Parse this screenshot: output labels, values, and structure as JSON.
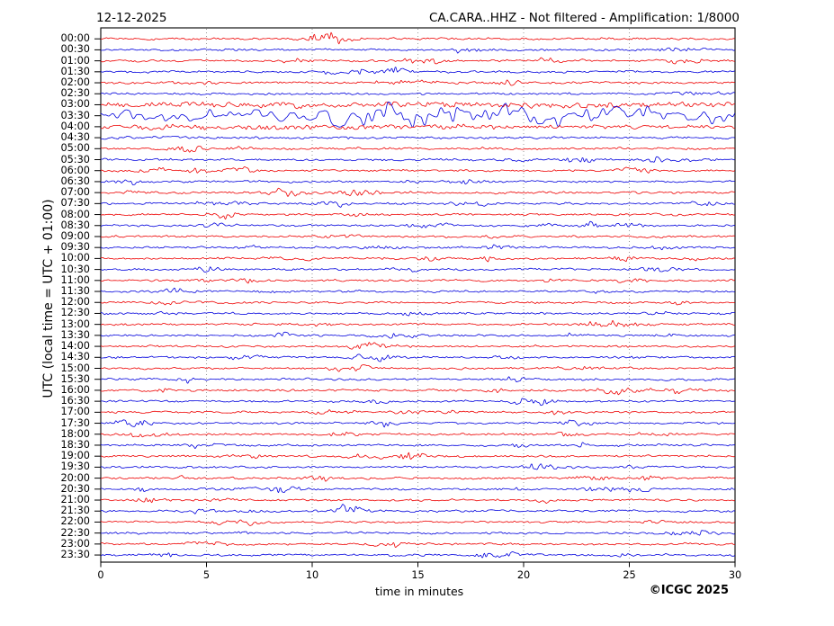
{
  "header": {
    "date": "12-12-2025",
    "title": "CA.CARA..HHZ - Not filtered - Amplification: 1/8000"
  },
  "footer": {
    "copyright": "©ICGC 2025"
  },
  "axes": {
    "xlabel": "time in minutes",
    "ylabel": "UTC (local time = UTC + 01:00)"
  },
  "chart_data": {
    "type": "line",
    "subtype": "helicorder-dayplot",
    "station": "CA.CARA..HHZ",
    "filter": "Not filtered",
    "amplification": "1/8000",
    "date": "12-12-2025",
    "xlabel": "time in minutes",
    "ylabel": "UTC (local time = UTC + 01:00)",
    "xlim": [
      0,
      30
    ],
    "x_ticks": [
      0,
      5,
      10,
      15,
      20,
      25,
      30
    ],
    "minutes_per_row": 30,
    "grid": "vertical dotted gridlines at 5-minute intervals",
    "trace_colors": {
      "even_rows": "#ee0000",
      "odd_rows": "#0000dd"
    },
    "grid_color": "#808080",
    "row_labels": [
      "00:00",
      "00:30",
      "01:00",
      "01:30",
      "02:00",
      "02:30",
      "03:00",
      "03:30",
      "04:00",
      "04:30",
      "05:00",
      "05:30",
      "06:00",
      "06:30",
      "07:00",
      "07:30",
      "08:00",
      "08:30",
      "09:00",
      "09:30",
      "10:00",
      "10:30",
      "11:00",
      "11:30",
      "12:00",
      "12:30",
      "13:00",
      "13:30",
      "14:00",
      "14:30",
      "15:00",
      "15:30",
      "16:00",
      "16:30",
      "17:00",
      "17:30",
      "18:00",
      "18:30",
      "19:00",
      "19:30",
      "20:00",
      "20:30",
      "21:00",
      "21:30",
      "22:00",
      "22:30",
      "23:00",
      "23:30"
    ],
    "base_amplitude": 1.15,
    "event": {
      "description": "large seismic event with onset burst, peak oscillations and decaying coda",
      "onset_row": "02:30",
      "onset_minute": 27.2,
      "peak_row": "03:30",
      "coda_row": "04:00"
    },
    "event_rows": {
      "02:30": {
        "env": [
          [
            0,
            1.1
          ],
          [
            26.8,
            1.1
          ],
          [
            27.1,
            4.0
          ],
          [
            27.6,
            2.8
          ],
          [
            28.3,
            1.8
          ],
          [
            28.9,
            1.5
          ],
          [
            29.3,
            2.2
          ],
          [
            30,
            1.6
          ]
        ]
      },
      "03:00": {
        "env": [
          [
            0,
            2.1
          ],
          [
            1.5,
            2.7
          ],
          [
            3,
            2.3
          ],
          [
            5,
            2.9
          ],
          [
            7,
            2.4
          ],
          [
            9,
            3.0
          ],
          [
            11,
            2.5
          ],
          [
            13,
            3.2
          ],
          [
            15,
            2.7
          ],
          [
            16.5,
            3.6
          ],
          [
            18,
            2.8
          ],
          [
            20,
            3.3
          ],
          [
            22,
            2.7
          ],
          [
            24,
            3.1
          ],
          [
            26,
            2.6
          ],
          [
            28,
            3.0
          ],
          [
            30,
            2.7
          ]
        ]
      },
      "03:30": {
        "freq": "low",
        "env": [
          [
            0,
            4.5
          ],
          [
            1,
            6.5
          ],
          [
            2,
            5
          ],
          [
            3,
            7
          ],
          [
            4,
            5.5
          ],
          [
            5,
            7
          ],
          [
            6,
            5.5
          ],
          [
            7,
            6.5
          ],
          [
            8,
            5.5
          ],
          [
            9,
            7.5
          ],
          [
            10,
            8.5
          ],
          [
            11,
            9.5
          ],
          [
            12,
            11.5
          ],
          [
            12.7,
            9.5
          ],
          [
            13.4,
            13
          ],
          [
            14.1,
            10.5
          ],
          [
            14.8,
            14.5
          ],
          [
            15.5,
            11
          ],
          [
            16.2,
            15
          ],
          [
            17,
            11.5
          ],
          [
            17.8,
            13.5
          ],
          [
            18.6,
            10.5
          ],
          [
            19.4,
            12
          ],
          [
            20.2,
            9.5
          ],
          [
            21,
            10.5
          ],
          [
            22,
            8.5
          ],
          [
            23,
            9.5
          ],
          [
            24,
            7.5
          ],
          [
            25,
            8.5
          ],
          [
            26,
            7
          ],
          [
            27,
            8
          ],
          [
            28,
            6.5
          ],
          [
            29,
            7.5
          ],
          [
            30,
            6.8
          ]
        ]
      },
      "04:00": {
        "env": [
          [
            0,
            3.0
          ],
          [
            2,
            2.7
          ],
          [
            4,
            3.0
          ],
          [
            6,
            2.6
          ],
          [
            8,
            2.8
          ],
          [
            10,
            2.5
          ],
          [
            12,
            2.7
          ],
          [
            14,
            2.4
          ],
          [
            16,
            2.6
          ],
          [
            18,
            2.3
          ],
          [
            20,
            2.5
          ],
          [
            22,
            2.2
          ],
          [
            24,
            2.3
          ],
          [
            26,
            2.1
          ],
          [
            28,
            2.2
          ],
          [
            30,
            2.0
          ]
        ]
      },
      "04:30": {
        "env": [
          [
            0,
            1.6
          ],
          [
            5,
            1.4
          ],
          [
            10,
            1.5
          ],
          [
            15,
            1.3
          ],
          [
            20,
            1.4
          ],
          [
            25,
            1.3
          ],
          [
            30,
            1.3
          ]
        ]
      }
    }
  }
}
